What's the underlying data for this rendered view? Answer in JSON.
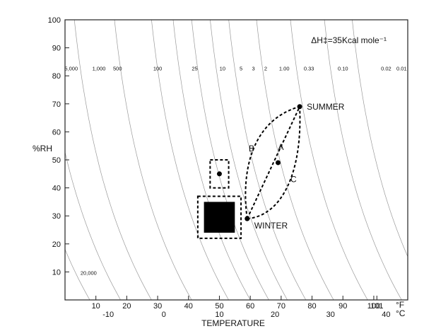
{
  "chart_data": {
    "type": "line",
    "title": "",
    "formula": "ΔH‡=35Kcal mole⁻¹",
    "xlabel": "TEMPERATURE",
    "ylabel": "%RH",
    "ylim": [
      0,
      100
    ],
    "yticks": [
      10,
      20,
      30,
      40,
      50,
      60,
      70,
      80,
      90,
      100
    ],
    "x_axis_unit": "°F",
    "xlim": [
      0,
      111
    ],
    "xticks": [
      10,
      20,
      30,
      40,
      50,
      60,
      70,
      80,
      90,
      100,
      101
    ],
    "celsius_unit": "°C",
    "celsius_ticks": [
      -10,
      0,
      10,
      20,
      30,
      40
    ],
    "grid": false,
    "isoperm_labels": [
      "5,000",
      "1,000",
      "500",
      "100",
      "25",
      "10",
      "5",
      "3",
      "2",
      "1.00",
      "0.33",
      "0.10",
      "0.02",
      "0.01"
    ],
    "isoperm_label_bottom": "20,000",
    "points": [
      {
        "name": "SUMMER",
        "x": 76,
        "y": 69
      },
      {
        "name": "WINTER",
        "x": 59,
        "y": 29
      },
      {
        "name": "A",
        "x": 69,
        "y": 49
      },
      {
        "name": "",
        "x": 50,
        "y": 45
      }
    ],
    "path_labels": [
      "B",
      "A",
      "C"
    ],
    "boxes": [
      {
        "kind": "filled",
        "x": [
          45,
          55
        ],
        "y": [
          24,
          35
        ]
      },
      {
        "kind": "dashed",
        "x": [
          43,
          57
        ],
        "y": [
          22,
          37
        ]
      },
      {
        "kind": "dashed",
        "x": [
          47,
          53
        ],
        "y": [
          40,
          50
        ]
      }
    ]
  }
}
